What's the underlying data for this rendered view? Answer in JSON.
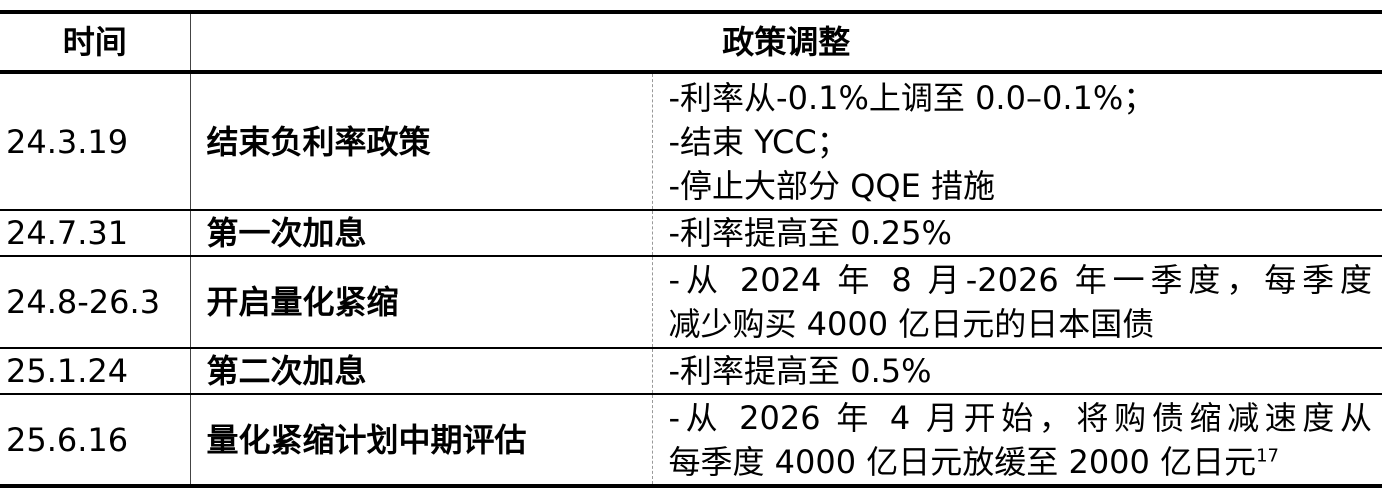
{
  "header": {
    "time": "时间",
    "policy": "政策调整"
  },
  "rows": [
    {
      "date": "24.3.19",
      "name": "结束负利率政策",
      "details": [
        "-利率从-0.1%上调至 0.0–0.1%；",
        "-结束 YCC；",
        "-停止大部分 QQE 措施"
      ]
    },
    {
      "date": "24.7.31",
      "name": "第一次加息",
      "details": [
        "-利率提高至 0.25%"
      ]
    },
    {
      "date": "24.8-26.3",
      "name": "开启量化紧缩",
      "details": [
        "-从 2024 年 8 月-2026 年一季度，每季度",
        "减少购买 4000 亿日元的日本国债"
      ]
    },
    {
      "date": "25.1.24",
      "name": "第二次加息",
      "details": [
        "-利率提高至 0.5%"
      ]
    },
    {
      "date": "25.6.16",
      "name": "量化紧缩计划中期评估",
      "details": [
        "-从 2026 年 4 月开始，将购债缩减速度从",
        "每季度 4000 亿日元放缓至 2000 亿日元"
      ],
      "footnote": "17"
    }
  ]
}
